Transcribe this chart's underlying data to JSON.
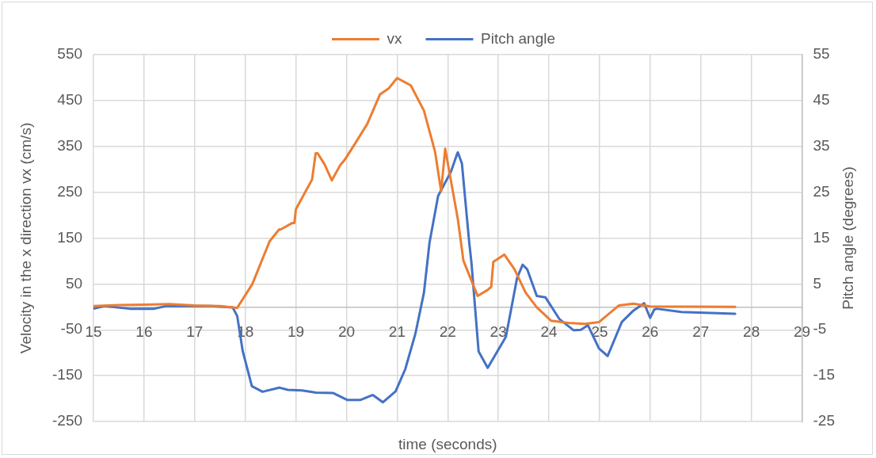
{
  "chart_data": {
    "type": "line",
    "xlabel": "time (seconds)",
    "ylabel": "Velocity in the x direction vx (cm/s)",
    "y2label": "Pitch angle (degrees)",
    "xlim": [
      15,
      29
    ],
    "xticks": [
      15,
      16,
      17,
      18,
      19,
      20,
      21,
      22,
      23,
      24,
      25,
      26,
      27,
      28,
      29
    ],
    "ylim": [
      -250,
      550
    ],
    "yticks": [
      -250,
      -150,
      -50,
      50,
      150,
      250,
      350,
      450,
      550
    ],
    "y2lim": [
      -25,
      55
    ],
    "y2ticks": [
      -25,
      -15,
      -5,
      5,
      15,
      25,
      35,
      45,
      55
    ],
    "grid": true,
    "legend": "top",
    "marker": "none",
    "line_style": "solid",
    "series": [
      {
        "name": "vx",
        "color": "#ed7d31",
        "x": [
          15,
          15.5,
          16,
          16.5,
          17,
          17.5,
          17.84,
          18.14,
          18.48,
          18.67,
          18.7,
          18.93,
          18.97,
          19.0,
          19.32,
          19.39,
          19.43,
          19.57,
          19.71,
          19.88,
          19.96,
          20.18,
          20.41,
          20.66,
          20.83,
          21.0,
          21.27,
          21.53,
          21.75,
          21.87,
          21.95,
          22.2,
          22.31,
          22.59,
          22.79,
          22.86,
          22.9,
          23.12,
          23.32,
          23.54,
          23.76,
          24.04,
          24.38,
          24.71,
          24.99,
          25.38,
          25.67,
          26.0,
          27.68
        ],
        "values": [
          2,
          4,
          5,
          6,
          3,
          2,
          -2,
          50,
          143,
          169,
          169,
          183,
          183,
          213,
          278,
          335,
          335,
          310,
          276,
          310,
          320,
          358,
          399,
          463,
          476,
          499,
          483,
          428,
          338,
          252,
          345,
          191,
          101,
          24,
          37,
          44,
          98,
          114,
          82,
          31,
          -1,
          -30,
          -35,
          -37,
          -33,
          3,
          7,
          1,
          0
        ]
      },
      {
        "name": "Pitch angle",
        "color": "#4472c4",
        "axis": "y2",
        "x": [
          15,
          15.23,
          15.71,
          16.2,
          16.44,
          17.33,
          17.75,
          17.84,
          17.95,
          18.13,
          18.34,
          18.67,
          18.84,
          19.12,
          19.4,
          19.74,
          20.02,
          20.27,
          20.52,
          20.72,
          20.97,
          21.16,
          21.36,
          21.53,
          21.64,
          21.81,
          22.06,
          22.19,
          22.2,
          22.28,
          22.42,
          22.47,
          22.61,
          22.79,
          23.15,
          23.37,
          23.48,
          23.57,
          23.76,
          23.93,
          24.21,
          24.49,
          24.63,
          24.77,
          24.99,
          25.16,
          25.44,
          25.67,
          25.88,
          26.0,
          26.08,
          26.13,
          26.62,
          27.68
        ],
        "values": [
          -0.4,
          0.2,
          -0.4,
          -0.4,
          0.2,
          0.2,
          -0.1,
          -2,
          -9.7,
          -17.3,
          -18.5,
          -17.6,
          -18.1,
          -18.2,
          -18.7,
          -18.8,
          -20.3,
          -20.3,
          -19.2,
          -20.8,
          -18.4,
          -13.6,
          -5.9,
          3.1,
          14,
          24.2,
          29.4,
          33.5,
          33.7,
          31.3,
          14.6,
          9.5,
          -9.7,
          -13.3,
          -6.5,
          6.3,
          9.2,
          8.2,
          2.4,
          2.1,
          -2.7,
          -5.1,
          -5,
          -4,
          -9.1,
          -10.7,
          -3.3,
          -0.8,
          0.8,
          -2.4,
          -0.6,
          -0.4,
          -1.1,
          -1.5
        ]
      }
    ]
  }
}
